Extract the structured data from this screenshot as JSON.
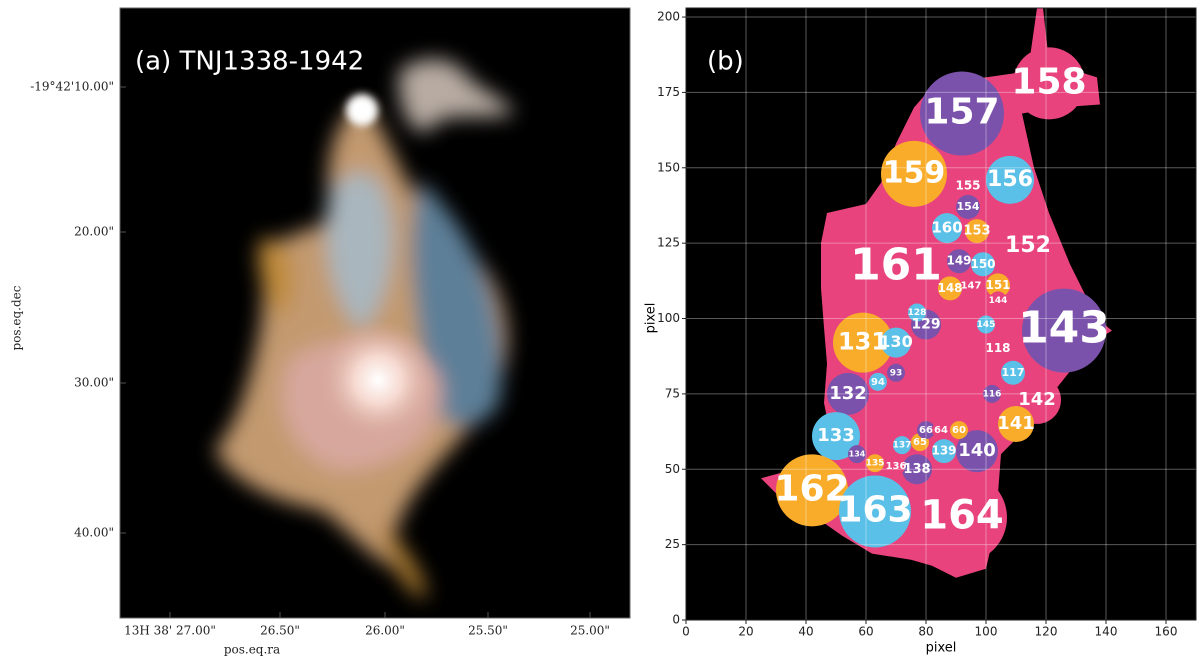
{
  "panel_a": {
    "label": "(a) TNJ1338-1942",
    "x_axis": {
      "title": "pos.eq.ra",
      "ticks": [
        "13H 38' 27.00\"",
        "26.50\"",
        "26.00\"",
        "25.50\"",
        "25.00\""
      ]
    },
    "y_axis": {
      "title": "pos.eq.dec",
      "ticks": [
        "-19°42'10.00\"",
        "20.00\"",
        "30.00\"",
        "40.00\""
      ]
    }
  },
  "panel_b": {
    "label": "(b)",
    "x_axis": {
      "title": "pixel",
      "ticks": [
        0,
        20,
        40,
        60,
        80,
        100,
        120,
        140,
        160
      ],
      "lim": [
        0,
        170
      ]
    },
    "y_axis": {
      "title": "pixel",
      "ticks": [
        0,
        25,
        50,
        75,
        100,
        125,
        150,
        175,
        200
      ],
      "lim": [
        0,
        203
      ]
    },
    "grid": true,
    "background_color": "#e8437c",
    "regions": [
      {
        "label": "158",
        "color": "#e8437c"
      },
      {
        "label": "157",
        "color": "#7b52ab"
      },
      {
        "label": "159",
        "color": "#f8ac2a"
      },
      {
        "label": "155",
        "color": "#e8437c"
      },
      {
        "label": "156",
        "color": "#5bc0e8"
      },
      {
        "label": "154",
        "color": "#7b52ab"
      },
      {
        "label": "160",
        "color": "#5bc0e8"
      },
      {
        "label": "153",
        "color": "#f8ac2a"
      },
      {
        "label": "152",
        "color": "#e8437c"
      },
      {
        "label": "161",
        "color": "#e8437c"
      },
      {
        "label": "149",
        "color": "#7b52ab"
      },
      {
        "label": "150",
        "color": "#5bc0e8"
      },
      {
        "label": "148",
        "color": "#f8ac2a"
      },
      {
        "label": "147",
        "color": "#e8437c"
      },
      {
        "label": "151",
        "color": "#f8ac2a"
      },
      {
        "label": "143",
        "color": "#7b52ab"
      },
      {
        "label": "131",
        "color": "#f8ac2a"
      },
      {
        "label": "130",
        "color": "#5bc0e8"
      },
      {
        "label": "129",
        "color": "#7b52ab"
      },
      {
        "label": "128",
        "color": "#5bc0e8"
      },
      {
        "label": "144",
        "color": "#e8437c"
      },
      {
        "label": "145",
        "color": "#5bc0e8"
      },
      {
        "label": "118",
        "color": "#e8437c"
      },
      {
        "label": "117",
        "color": "#5bc0e8"
      },
      {
        "label": "116",
        "color": "#7b52ab"
      },
      {
        "label": "132",
        "color": "#7b52ab"
      },
      {
        "label": "142",
        "color": "#e8437c"
      },
      {
        "label": "141",
        "color": "#f8ac2a"
      },
      {
        "label": "133",
        "color": "#5bc0e8"
      },
      {
        "label": "140",
        "color": "#7b52ab"
      },
      {
        "label": "139",
        "color": "#5bc0e8"
      },
      {
        "label": "138",
        "color": "#7b52ab"
      },
      {
        "label": "137",
        "color": "#5bc0e8"
      },
      {
        "label": "136",
        "color": "#e8437c"
      },
      {
        "label": "135",
        "color": "#f8ac2a"
      },
      {
        "label": "134",
        "color": "#7b52ab"
      },
      {
        "label": "94",
        "color": "#5bc0e8"
      },
      {
        "label": "93",
        "color": "#7b52ab"
      },
      {
        "label": "65",
        "color": "#f8ac2a"
      },
      {
        "label": "66",
        "color": "#7b52ab"
      },
      {
        "label": "64",
        "color": "#e8437c"
      },
      {
        "label": "60",
        "color": "#f8ac2a"
      },
      {
        "label": "162",
        "color": "#f8ac2a"
      },
      {
        "label": "163",
        "color": "#5bc0e8"
      },
      {
        "label": "164",
        "color": "#e8437c"
      }
    ]
  }
}
